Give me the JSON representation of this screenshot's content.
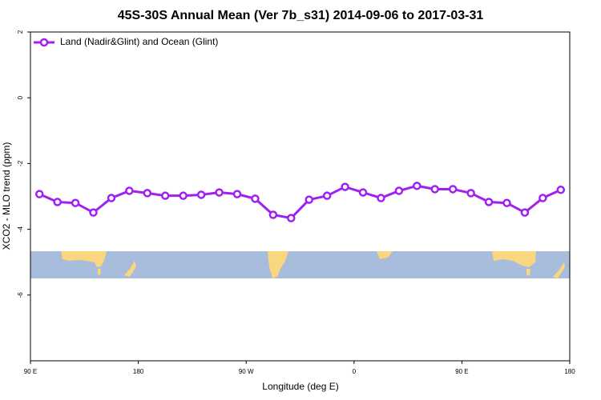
{
  "chart_data": {
    "type": "line",
    "title": "45S-30S Annual Mean (Ver 7b_s31)   2014-09-06 to 2017-03-31",
    "x_label": "Longitude (deg E)",
    "y_label": "XCO2 - MLO trend (ppm)",
    "x": [
      97.5,
      112.5,
      127.5,
      142.5,
      157.5,
      172.5,
      187.5,
      202.5,
      217.5,
      232.5,
      247.5,
      262.5,
      277.5,
      292.5,
      307.5,
      322.5,
      337.5,
      352.5,
      367.5,
      382.5,
      397.5,
      412.5,
      427.5,
      442.5,
      457.5,
      472.5,
      487.5,
      502.5,
      517.5,
      532.5
    ],
    "series": [
      {
        "name": "Land (Nadir&Glint) and Ocean (Glint)",
        "color": "#a020f0",
        "values": [
          -2.93,
          -3.17,
          -3.2,
          -3.49,
          -3.05,
          -2.83,
          -2.9,
          -2.98,
          -2.98,
          -2.95,
          -2.88,
          -2.93,
          -3.07,
          -3.56,
          -3.66,
          -3.1,
          -2.98,
          -2.71,
          -2.88,
          -3.05,
          -2.83,
          -2.68,
          -2.78,
          -2.78,
          -2.9,
          -3.17,
          -3.2,
          -3.49,
          -3.05,
          -2.8
        ]
      }
    ],
    "xlim": [
      90,
      540
    ],
    "xticks": [
      {
        "value": 90,
        "label": "90 E"
      },
      180,
      {
        "value": 270,
        "label": "90 W"
      },
      {
        "value": 360,
        "label": "0"
      },
      {
        "value": 450,
        "label": "90 E"
      },
      {
        "value": 540,
        "label": "180"
      }
    ],
    "ylim": [
      -8,
      2
    ],
    "yticks": [
      -6,
      -4,
      -2,
      0,
      2
    ]
  }
}
